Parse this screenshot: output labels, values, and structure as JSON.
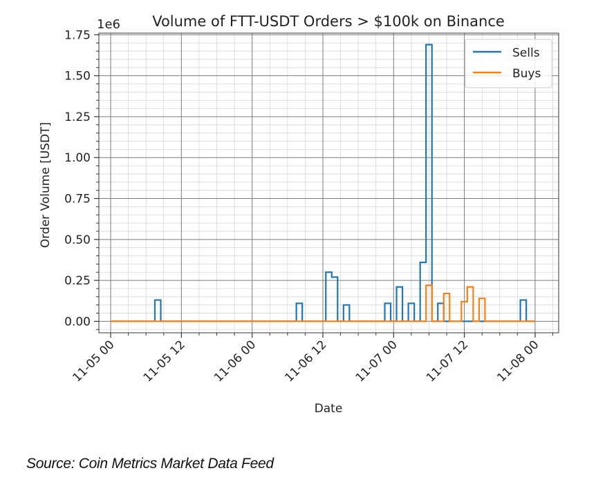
{
  "chart_data": {
    "type": "line",
    "title": "Volume of FTT-USDT Orders > $100k on Binance",
    "xlabel": "Date",
    "ylabel": "Order Volume [USDT]",
    "y_offset_label": "1e6",
    "y_scale": 1000000,
    "xlim": [
      "2022-11-04T22:00",
      "2022-11-08T04:00"
    ],
    "ylim": [
      -0.07,
      1.76
    ],
    "x_ticks": [
      "11-05 00",
      "11-05 12",
      "11-06 00",
      "11-06 12",
      "11-07 00",
      "11-07 12",
      "11-08 00"
    ],
    "x_tick_hours": [
      0,
      12,
      24,
      36,
      48,
      60,
      72
    ],
    "y_ticks": [
      "0.00",
      "0.25",
      "0.50",
      "0.75",
      "1.00",
      "1.25",
      "1.50",
      "1.75"
    ],
    "y_tick_values": [
      0,
      0.25,
      0.5,
      0.75,
      1.0,
      1.25,
      1.5,
      1.75
    ],
    "grid": true,
    "drawstyle": "steps-mid",
    "legend_position": "top-right",
    "x": [
      "11-05 00",
      "11-05 01",
      "11-05 02",
      "11-05 03",
      "11-05 04",
      "11-05 05",
      "11-05 06",
      "11-05 07",
      "11-05 08",
      "11-05 09",
      "11-05 10",
      "11-05 11",
      "11-05 12",
      "11-05 13",
      "11-05 14",
      "11-05 15",
      "11-05 16",
      "11-05 17",
      "11-05 18",
      "11-05 19",
      "11-05 20",
      "11-05 21",
      "11-05 22",
      "11-05 23",
      "11-06 00",
      "11-06 01",
      "11-06 02",
      "11-06 03",
      "11-06 04",
      "11-06 05",
      "11-06 06",
      "11-06 07",
      "11-06 08",
      "11-06 09",
      "11-06 10",
      "11-06 11",
      "11-06 12",
      "11-06 13",
      "11-06 14",
      "11-06 15",
      "11-06 16",
      "11-06 17",
      "11-06 18",
      "11-06 19",
      "11-06 20",
      "11-06 21",
      "11-06 22",
      "11-06 23",
      "11-07 00",
      "11-07 01",
      "11-07 02",
      "11-07 03",
      "11-07 04",
      "11-07 05",
      "11-07 06",
      "11-07 07",
      "11-07 08",
      "11-07 09",
      "11-07 10",
      "11-07 11",
      "11-07 12",
      "11-07 13",
      "11-07 14",
      "11-07 15",
      "11-07 16",
      "11-07 17",
      "11-07 18",
      "11-07 19",
      "11-07 20",
      "11-07 21",
      "11-07 22",
      "11-07 23",
      "11-08 00"
    ],
    "series": [
      {
        "name": "Sells",
        "color": "#1f77b4",
        "values": [
          0,
          0,
          0,
          0,
          0,
          0,
          0,
          0,
          0.13,
          0,
          0,
          0,
          0,
          0,
          0,
          0,
          0,
          0,
          0,
          0,
          0,
          0,
          0,
          0,
          0,
          0,
          0,
          0,
          0,
          0,
          0,
          0,
          0.11,
          0,
          0,
          0,
          0,
          0.3,
          0.27,
          0,
          0.1,
          0,
          0,
          0,
          0,
          0,
          0,
          0.11,
          0,
          0.21,
          0,
          0.11,
          0,
          0.36,
          1.69,
          0,
          0.11,
          0,
          0,
          0,
          0,
          0,
          0,
          0,
          0,
          0,
          0,
          0,
          0,
          0,
          0.13,
          0,
          0
        ]
      },
      {
        "name": "Buys",
        "color": "#ff7f0e",
        "values": [
          0,
          0,
          0,
          0,
          0,
          0,
          0,
          0,
          0,
          0,
          0,
          0,
          0,
          0,
          0,
          0,
          0,
          0,
          0,
          0,
          0,
          0,
          0,
          0,
          0,
          0,
          0,
          0,
          0,
          0,
          0,
          0,
          0,
          0,
          0,
          0,
          0,
          0,
          0,
          0,
          0,
          0,
          0,
          0,
          0,
          0,
          0,
          0,
          0,
          0,
          0,
          0,
          0,
          0,
          0.22,
          0,
          0,
          0.17,
          0,
          0,
          0.12,
          0.21,
          0,
          0.14,
          0,
          0,
          0,
          0,
          0,
          0,
          0,
          0,
          0
        ]
      }
    ]
  },
  "caption": "Source: Coin Metrics Market Data Feed"
}
